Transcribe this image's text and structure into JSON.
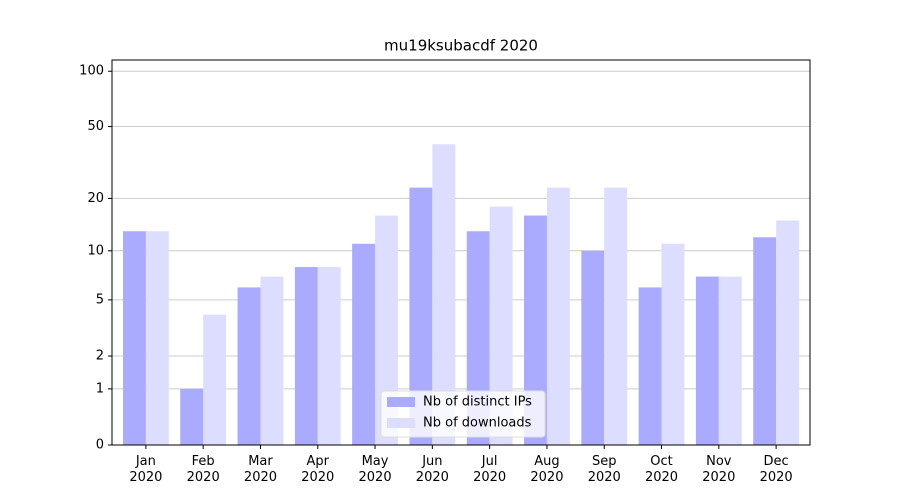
{
  "chart_data": {
    "type": "bar",
    "title": "mu19ksubacdf 2020",
    "categories": [
      "Jan\n2020",
      "Feb\n2020",
      "Mar\n2020",
      "Apr\n2020",
      "May\n2020",
      "Jun\n2020",
      "Jul\n2020",
      "Aug\n2020",
      "Sep\n2020",
      "Oct\n2020",
      "Nov\n2020",
      "Dec\n2020"
    ],
    "series": [
      {
        "name": "Nb of distinct IPs",
        "color": "#aaaaff",
        "values": [
          13,
          1,
          6,
          8,
          11,
          23,
          13,
          16,
          10,
          6,
          7,
          12
        ]
      },
      {
        "name": "Nb of downloads",
        "color": "#ddddff",
        "values": [
          13,
          4,
          7,
          8,
          16,
          40,
          18,
          23,
          23,
          11,
          7,
          15
        ]
      }
    ],
    "yscale": "log1p",
    "ylim": [
      0,
      115
    ],
    "yticks": [
      0,
      1,
      2,
      5,
      10,
      20,
      50,
      100
    ],
    "grid": true,
    "legend": "lower center"
  }
}
